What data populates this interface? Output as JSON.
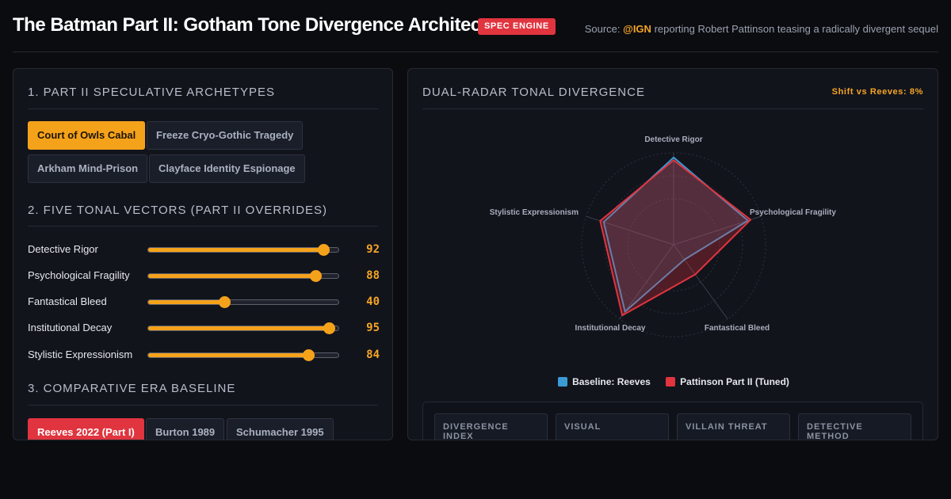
{
  "header": {
    "title": "The Batman Part II: Gotham Tone Divergence Architect",
    "badge": "SPEC ENGINE",
    "source_prefix": "Source:",
    "source_handle": "@IGN",
    "source_text": "reporting Robert Pattinson teasing a radically divergent sequel"
  },
  "archetypes": {
    "title": "1. PART II SPECULATIVE ARCHETYPES",
    "items": [
      {
        "label": "Court of Owls Cabal",
        "active": true
      },
      {
        "label": "Freeze Cryo-Gothic Tragedy",
        "active": false
      },
      {
        "label": "Arkham Mind-Prison",
        "active": false
      },
      {
        "label": "Clayface Identity Espionage",
        "active": false
      }
    ]
  },
  "vectors": {
    "title": "2. FIVE TONAL VECTORS (PART II OVERRIDES)",
    "items": [
      {
        "label": "Detective Rigor",
        "value": 92
      },
      {
        "label": "Psychological Fragility",
        "value": 88
      },
      {
        "label": "Fantastical Bleed",
        "value": 40
      },
      {
        "label": "Institutional Decay",
        "value": 95
      },
      {
        "label": "Stylistic Expressionism",
        "value": 84
      }
    ],
    "max": 100
  },
  "era": {
    "title": "3. COMPARATIVE ERA BASELINE",
    "items": [
      {
        "label": "Reeves 2022 (Part I)",
        "active": true
      },
      {
        "label": "Burton 1989",
        "active": false
      },
      {
        "label": "Schumacher 1995",
        "active": false
      }
    ]
  },
  "radar": {
    "title": "DUAL-RADAR TONAL DIVERGENCE",
    "shift_label": "Shift vs Reeves: 8%",
    "axes": [
      "Detective Rigor",
      "Psychological Fragility",
      "Fantastical Bleed",
      "Institutional Decay",
      "Stylistic Expressionism"
    ],
    "baseline_name": "Baseline: Reeves",
    "baseline_values": [
      95,
      85,
      20,
      90,
      80
    ],
    "baseline_color": "#3a9bd5",
    "tuned_name": "Pattinson Part II (Tuned)",
    "tuned_values": [
      92,
      88,
      40,
      95,
      84
    ],
    "tuned_color": "#e0343f"
  },
  "metrics": [
    {
      "label": "DIVERGENCE INDEX"
    },
    {
      "label": "VISUAL"
    },
    {
      "label": "VILLAIN THREAT"
    },
    {
      "label": "DETECTIVE METHOD"
    }
  ]
}
